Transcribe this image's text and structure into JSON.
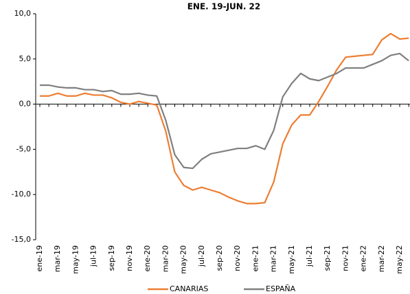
{
  "chart_data": {
    "type": "line",
    "title": "ENE. 19-JUN. 22",
    "categories": [
      "ene-19",
      null,
      "mar-19",
      null,
      "may-19",
      null,
      "jul-19",
      null,
      "sep-19",
      null,
      "nov-19",
      null,
      "ene-20",
      null,
      "mar-20",
      null,
      "may-20",
      null,
      "jul-20",
      null,
      "sep-20",
      null,
      "nov-20",
      null,
      "ene-21",
      null,
      "mar-21",
      null,
      "may-21",
      null,
      "jul-21",
      null,
      "sep-21",
      null,
      "nov-21",
      null,
      "ene-22",
      null,
      "mar-22",
      null,
      "may-22",
      null
    ],
    "series": [
      {
        "name": "CANARIAS",
        "color": "#ed7d31",
        "values": [
          0.9,
          0.9,
          1.2,
          0.9,
          0.9,
          1.2,
          1.0,
          1.0,
          0.7,
          0.2,
          0.0,
          0.3,
          0.1,
          -0.1,
          -3.0,
          -7.5,
          -9.0,
          -9.5,
          -9.2,
          -9.5,
          -9.8,
          -10.3,
          -10.7,
          -11.0,
          -11.0,
          -10.9,
          -8.6,
          -4.4,
          -2.3,
          -1.2,
          -1.2,
          0.3,
          2.0,
          3.8,
          5.2,
          5.3,
          5.4,
          5.5,
          7.1,
          7.8,
          7.2,
          7.3
        ]
      },
      {
        "name": "ESPAÑA",
        "color": "#7f7f7f",
        "values": [
          2.1,
          2.1,
          1.9,
          1.8,
          1.8,
          1.6,
          1.6,
          1.4,
          1.5,
          1.1,
          1.1,
          1.2,
          1.0,
          0.9,
          -1.8,
          -5.6,
          -7.0,
          -7.1,
          -6.1,
          -5.5,
          -5.3,
          -5.1,
          -4.9,
          -4.9,
          -4.6,
          -5.0,
          -2.9,
          0.8,
          2.3,
          3.4,
          2.8,
          2.6,
          3.0,
          3.4,
          4.0,
          4.0,
          4.0,
          4.4,
          4.8,
          5.4,
          5.6,
          4.8
        ]
      }
    ],
    "ylim": [
      -15,
      10
    ],
    "yticks": [
      {
        "value": -15,
        "label": "-15,0"
      },
      {
        "value": -10,
        "label": "-10,0"
      },
      {
        "value": -5,
        "label": "-5,0"
      },
      {
        "value": 0,
        "label": "0,0"
      },
      {
        "value": 5,
        "label": "5,0"
      },
      {
        "value": 10,
        "label": "10,0"
      }
    ],
    "legend": "bottom",
    "grid": false
  }
}
